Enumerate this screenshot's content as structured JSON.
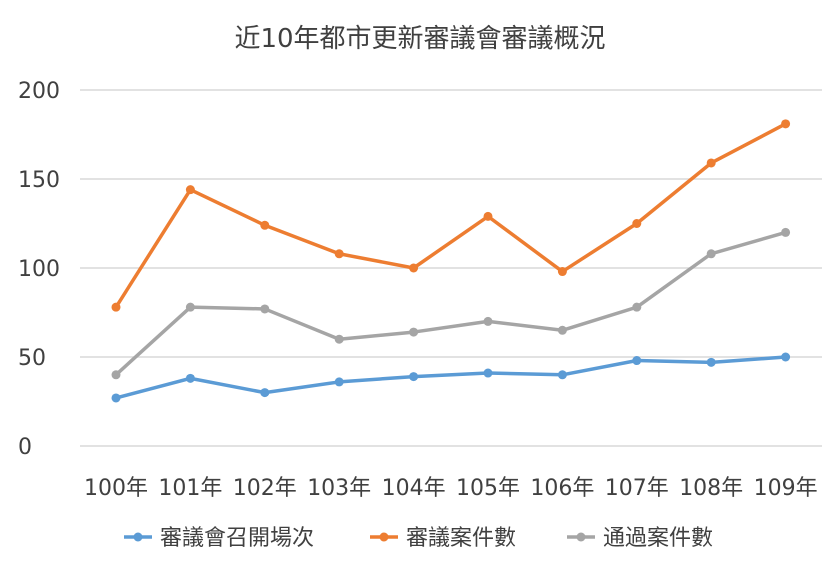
{
  "chart_data": {
    "type": "line",
    "title": "近10年都市更新審議會審議概況",
    "xlabel": "",
    "ylabel": "",
    "categories": [
      "100年",
      "101年",
      "102年",
      "103年",
      "104年",
      "105年",
      "106年",
      "107年",
      "108年",
      "109年"
    ],
    "ylim": [
      0,
      200
    ],
    "yticks": [
      0,
      50,
      100,
      150,
      200
    ],
    "grid": true,
    "legend_position": "bottom",
    "series": [
      {
        "name": "審議會召開場次",
        "color": "#5b9bd5",
        "values": [
          27,
          38,
          30,
          36,
          39,
          41,
          40,
          48,
          47,
          50
        ]
      },
      {
        "name": "審議案件數",
        "color": "#ed7d31",
        "values": [
          78,
          144,
          124,
          108,
          100,
          129,
          98,
          125,
          159,
          181
        ]
      },
      {
        "name": "通過案件數",
        "color": "#a5a5a5",
        "values": [
          40,
          78,
          77,
          60,
          64,
          70,
          65,
          78,
          108,
          120
        ]
      }
    ]
  }
}
